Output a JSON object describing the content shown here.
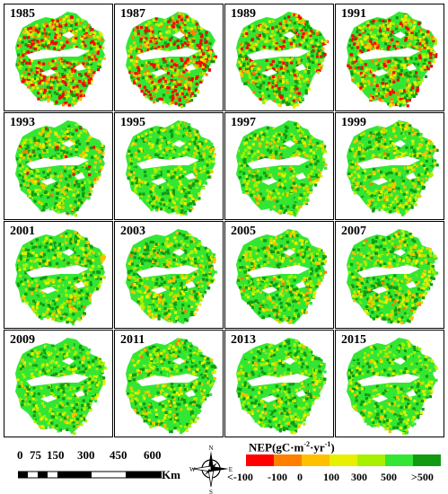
{
  "legend": {
    "title": "NEP(gC·m⁻²·yr⁻¹)",
    "title_main": "NEP(gC·m",
    "title_sup1": "-2",
    "title_mid": "·yr",
    "title_sup2": "-1",
    "title_end": ")",
    "classes": [
      {
        "label": "<-100",
        "color": "#ff0000"
      },
      {
        "label": "-100",
        "color": "#ff7f00"
      },
      {
        "label": "0",
        "color": "#ffc000"
      },
      {
        "label": "100",
        "color": "#e6f000"
      },
      {
        "label": "300",
        "color": "#a6f000"
      },
      {
        "label": "500",
        "color": "#33e633"
      },
      {
        "label": ">500",
        "color": "#129b12"
      }
    ]
  },
  "scale_bar": {
    "labels": [
      "0",
      "75",
      "150",
      "300",
      "450",
      "600"
    ],
    "unit": "Km"
  },
  "compass": {
    "n": "N",
    "s": "S",
    "e": "E",
    "w": "W"
  },
  "panels": [
    {
      "year": "1985",
      "red": 0.32,
      "orange": 0.12,
      "yellow": 0.08
    },
    {
      "year": "1987",
      "red": 0.34,
      "orange": 0.12,
      "yellow": 0.08
    },
    {
      "year": "1989",
      "red": 0.16,
      "orange": 0.08,
      "yellow": 0.1
    },
    {
      "year": "1991",
      "red": 0.22,
      "orange": 0.1,
      "yellow": 0.1
    },
    {
      "year": "1993",
      "red": 0.02,
      "orange": 0.02,
      "yellow": 0.14
    },
    {
      "year": "1995",
      "red": 0.0,
      "orange": 0.01,
      "yellow": 0.1
    },
    {
      "year": "1997",
      "red": 0.0,
      "orange": 0.01,
      "yellow": 0.12
    },
    {
      "year": "1999",
      "red": 0.0,
      "orange": 0.02,
      "yellow": 0.16
    },
    {
      "year": "2001",
      "red": 0.0,
      "orange": 0.01,
      "yellow": 0.12
    },
    {
      "year": "2003",
      "red": 0.0,
      "orange": 0.02,
      "yellow": 0.16
    },
    {
      "year": "2005",
      "red": 0.0,
      "orange": 0.02,
      "yellow": 0.14
    },
    {
      "year": "2007",
      "red": 0.0,
      "orange": 0.02,
      "yellow": 0.18
    },
    {
      "year": "2009",
      "red": 0.0,
      "orange": 0.0,
      "yellow": 0.06
    },
    {
      "year": "2011",
      "red": 0.0,
      "orange": 0.01,
      "yellow": 0.1
    },
    {
      "year": "2013",
      "red": 0.0,
      "orange": 0.0,
      "yellow": 0.06
    },
    {
      "year": "2015",
      "red": 0.0,
      "orange": 0.0,
      "yellow": 0.06
    }
  ]
}
